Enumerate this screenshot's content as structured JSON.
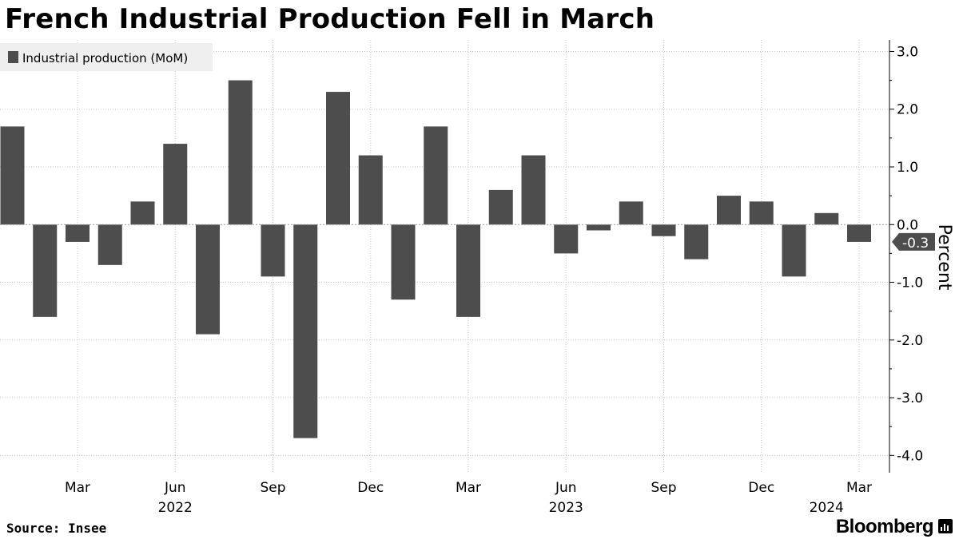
{
  "title": "French Industrial Production Fell in March",
  "source": "Source: Insee",
  "brand": "Bloomberg",
  "chart_data": {
    "type": "bar",
    "legend": {
      "label": "Industrial production (MoM)",
      "position": "top-left"
    },
    "ylabel": "Percent",
    "ylim": [
      -4.3,
      3.2
    ],
    "yticks": [
      3.0,
      2.0,
      1.0,
      0.0,
      -1.0,
      -2.0,
      -3.0,
      -4.0
    ],
    "ytick_labels": [
      "3.0",
      "2.0",
      "1.0",
      "0.0",
      "-1.0",
      "-2.0",
      "-3.0",
      "-4.0"
    ],
    "y_axis_side": "right",
    "grid": true,
    "bar_color": "#4d4d4d",
    "categories": [
      "2022-01",
      "2022-02",
      "2022-03",
      "2022-04",
      "2022-05",
      "2022-06",
      "2022-07",
      "2022-08",
      "2022-09",
      "2022-10",
      "2022-11",
      "2022-12",
      "2023-01",
      "2023-02",
      "2023-03",
      "2023-04",
      "2023-05",
      "2023-06",
      "2023-07",
      "2023-08",
      "2023-09",
      "2023-10",
      "2023-11",
      "2023-12",
      "2024-01",
      "2024-02",
      "2024-03"
    ],
    "values": [
      1.7,
      -1.6,
      -0.3,
      -0.7,
      0.4,
      1.4,
      -1.9,
      2.5,
      -0.9,
      -3.7,
      2.3,
      1.2,
      -1.3,
      1.7,
      -1.6,
      0.6,
      1.2,
      -0.5,
      -0.1,
      0.4,
      -0.2,
      -0.6,
      0.5,
      0.4,
      -0.9,
      0.2,
      -0.3
    ],
    "x_tick_labels": [
      {
        "category": "2022-03",
        "label": "Mar"
      },
      {
        "category": "2022-06",
        "label": "Jun"
      },
      {
        "category": "2022-09",
        "label": "Sep"
      },
      {
        "category": "2022-12",
        "label": "Dec"
      },
      {
        "category": "2023-03",
        "label": "Mar"
      },
      {
        "category": "2023-06",
        "label": "Jun"
      },
      {
        "category": "2023-09",
        "label": "Sep"
      },
      {
        "category": "2023-12",
        "label": "Dec"
      },
      {
        "category": "2024-03",
        "label": "Mar"
      }
    ],
    "x_year_labels": [
      {
        "category": "2022-06",
        "label": "2022"
      },
      {
        "category": "2023-06",
        "label": "2023"
      },
      {
        "category": "2024-02",
        "label": "2024"
      }
    ],
    "last_value_marker": {
      "category": "2024-03",
      "value": -0.3,
      "label": "-0.3"
    }
  }
}
